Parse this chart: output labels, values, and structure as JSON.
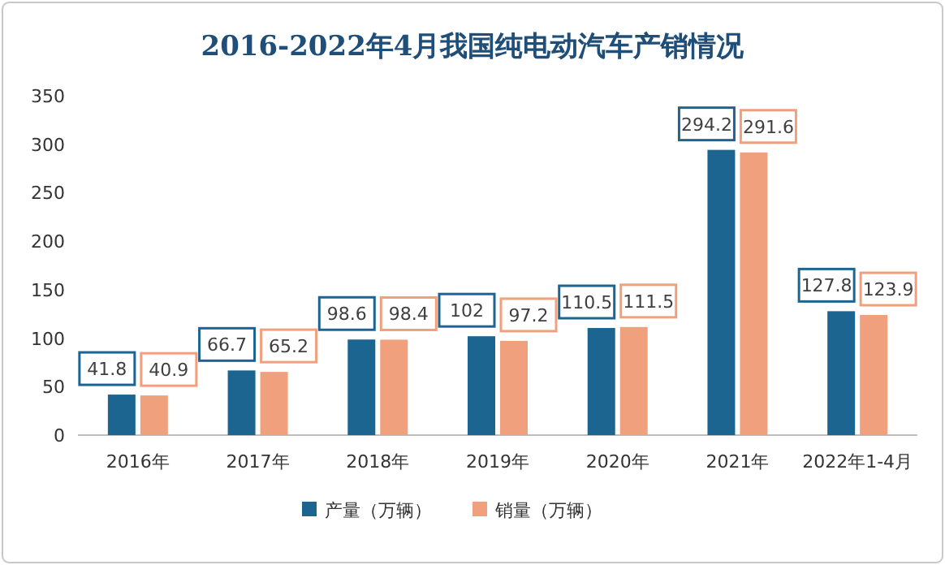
{
  "chart_data": {
    "type": "bar",
    "title": "2016-2022年4月我国纯电动汽车产销情况",
    "categories": [
      "2016年",
      "2017年",
      "2018年",
      "2019年",
      "2020年",
      "2021年",
      "2022年1-4月"
    ],
    "series": [
      {
        "name": "产量（万辆）",
        "color": "#1c6591",
        "values": [
          41.8,
          66.7,
          98.6,
          102,
          110.5,
          294.2,
          127.8
        ]
      },
      {
        "name": "销量（万辆）",
        "color": "#f0a07c",
        "values": [
          40.9,
          65.2,
          98.4,
          97.2,
          111.5,
          291.6,
          123.9
        ]
      }
    ],
    "ylim": [
      0,
      350
    ],
    "yticks": [
      0,
      50,
      100,
      150,
      200,
      250,
      300,
      350
    ],
    "data_labels": true,
    "legend": "bottom"
  }
}
